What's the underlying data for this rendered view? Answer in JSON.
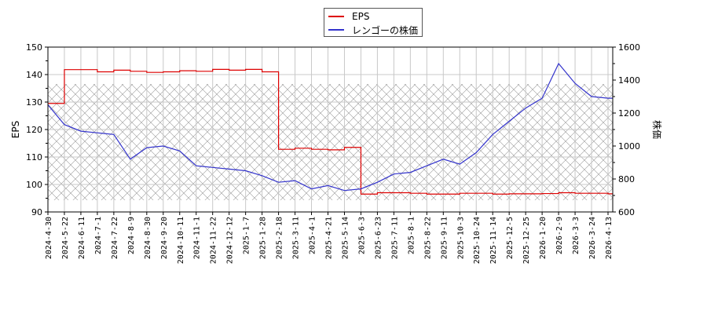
{
  "legend": {
    "items": [
      {
        "label": "EPS",
        "color": "#dd0000"
      },
      {
        "label": "レンゴーの株価",
        "color": "#3333cc"
      }
    ]
  },
  "axes": {
    "left_title": "EPS",
    "right_title": "株価",
    "left_ticks": [
      "90",
      "100",
      "110",
      "120",
      "130",
      "140",
      "150"
    ],
    "right_ticks": [
      "600",
      "800",
      "1000",
      "1200",
      "1400",
      "1600"
    ]
  },
  "chart_data": {
    "type": "line",
    "title": "",
    "xlabel": "",
    "ylabel": "EPS",
    "ylabel_right": "株価",
    "ylim": [
      90,
      150
    ],
    "ylim_right": [
      600,
      1600
    ],
    "grid": true,
    "legend_position": "top-center",
    "x_ticks": [
      "2024-4-30",
      "2024-5-22",
      "2024-6-11",
      "2024-7-1",
      "2024-7-22",
      "2024-8-9",
      "2024-8-30",
      "2024-9-20",
      "2024-10-11",
      "2024-11-1",
      "2024-11-22",
      "2024-12-12",
      "2025-1-7",
      "2025-1-28",
      "2025-2-18",
      "2025-3-11",
      "2025-4-1",
      "2025-4-21",
      "2025-5-14",
      "2025-6-3",
      "2025-6-23",
      "2025-7-11",
      "2025-8-1",
      "2025-8-22",
      "2025-9-11",
      "2025-10-3",
      "2025-10-24",
      "2025-11-14",
      "2025-12-5",
      "2025-12-25",
      "2026-1-20",
      "2026-2-9",
      "2026-3-3",
      "2026-3-24",
      "2026-4-13"
    ],
    "series": [
      {
        "name": "EPS",
        "axis": "left",
        "color": "#dd0000",
        "values": [
          129.5,
          141.8,
          141.8,
          141.0,
          141.6,
          141.2,
          140.8,
          141.0,
          141.4,
          141.2,
          141.9,
          141.6,
          141.9,
          141.0,
          112.8,
          113.2,
          112.8,
          112.6,
          113.5,
          96.5,
          97.0,
          97.0,
          96.8,
          96.5,
          96.5,
          96.8,
          96.8,
          96.5,
          96.6,
          96.6,
          96.7,
          97.0,
          96.8,
          96.8,
          96.6
        ]
      },
      {
        "name": "レンゴーの株価",
        "axis": "right",
        "color": "#3333cc",
        "values": [
          1250,
          1130,
          1090,
          1080,
          1070,
          920,
          990,
          1000,
          970,
          880,
          870,
          860,
          850,
          820,
          780,
          790,
          740,
          760,
          730,
          740,
          780,
          830,
          840,
          880,
          920,
          890,
          960,
          1070,
          1150,
          1230,
          1290,
          1500,
          1380,
          1300,
          1290
        ]
      }
    ]
  }
}
